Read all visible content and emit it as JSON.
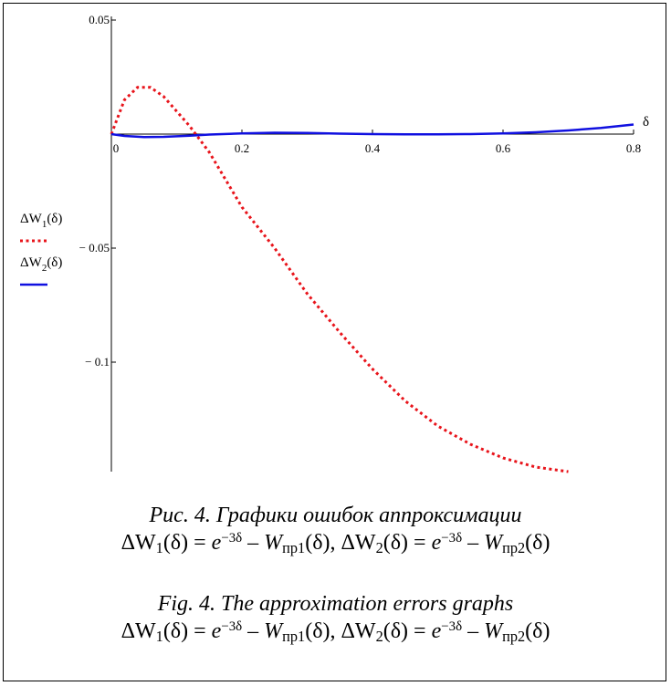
{
  "chart_data": {
    "type": "line",
    "x_axis_label": "δ",
    "x_ticks": [
      "0",
      "0.2",
      "0.4",
      "0.6",
      "0.8"
    ],
    "x_tick_values": [
      0,
      0.2,
      0.4,
      0.6,
      0.8
    ],
    "y_ticks": [
      "0.05",
      "− 0.05",
      "− 0.1"
    ],
    "y_tick_values": [
      0.05,
      -0.05,
      -0.1
    ],
    "xlim": [
      0,
      0.8
    ],
    "ylim": [
      -0.148,
      0.05
    ],
    "grid": false,
    "legend_position": "left",
    "series": [
      {
        "name": "ΔW1(δ)",
        "name_main": "ΔW",
        "name_sub": "1",
        "name_arg": "(δ)",
        "color": "#e8141b",
        "style": "dotted",
        "x": [
          0,
          0.02,
          0.04,
          0.06,
          0.08,
          0.1,
          0.12,
          0.15,
          0.2,
          0.25,
          0.3,
          0.35,
          0.4,
          0.45,
          0.5,
          0.55,
          0.6,
          0.65,
          0.7
        ],
        "y": [
          0,
          0.015,
          0.0205,
          0.0205,
          0.0165,
          0.01,
          0.0035,
          -0.008,
          -0.032,
          -0.05,
          -0.07,
          -0.087,
          -0.103,
          -0.117,
          -0.128,
          -0.136,
          -0.142,
          -0.146,
          -0.148
        ]
      },
      {
        "name": "ΔW2(δ)",
        "name_main": "ΔW",
        "name_sub": "2",
        "name_arg": "(δ)",
        "color": "#1010e0",
        "style": "solid",
        "x": [
          0,
          0.02,
          0.05,
          0.08,
          0.12,
          0.15,
          0.2,
          0.25,
          0.3,
          0.35,
          0.4,
          0.45,
          0.5,
          0.55,
          0.6,
          0.65,
          0.7,
          0.75,
          0.8
        ],
        "y": [
          0,
          -0.0008,
          -0.0013,
          -0.0012,
          -0.0007,
          -0.0002,
          0.0003,
          0.0006,
          0.0005,
          0.0002,
          0,
          -0.0001,
          -0.0001,
          0,
          0.0003,
          0.0008,
          0.0016,
          0.0027,
          0.0042
        ]
      }
    ]
  },
  "caption_ru": {
    "title": "Рис. 4. Графики ошибок аппроксимации"
  },
  "caption_en": {
    "title": "Fig. 4. The approximation errors graphs"
  },
  "formula": {
    "dw": "ΔW",
    "sub1": "1",
    "sub2": "2",
    "arg": "(δ)",
    "eq": " = ",
    "base": "e",
    "exp": "−3δ",
    "minus": " – ",
    "w": "W",
    "wsub1": "пр1",
    "wsub2": "пр2",
    "sep": ", "
  }
}
